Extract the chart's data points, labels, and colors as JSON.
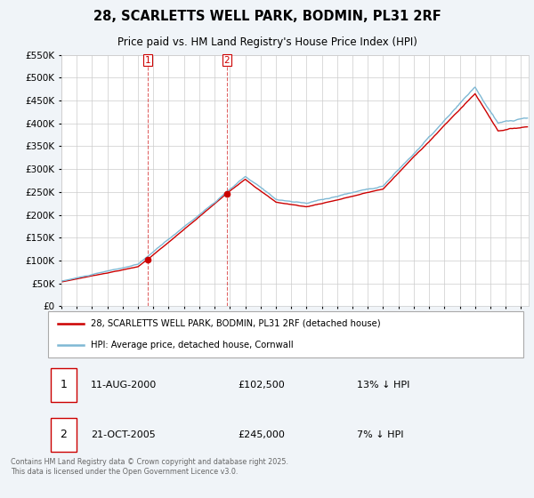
{
  "title": "28, SCARLETTS WELL PARK, BODMIN, PL31 2RF",
  "subtitle": "Price paid vs. HM Land Registry's House Price Index (HPI)",
  "ylim": [
    0,
    550000
  ],
  "xlim_start": 1995.0,
  "xlim_end": 2025.5,
  "legend_line1": "28, SCARLETTS WELL PARK, BODMIN, PL31 2RF (detached house)",
  "legend_line2": "HPI: Average price, detached house, Cornwall",
  "annotation1_date": "11-AUG-2000",
  "annotation1_price": "£102,500",
  "annotation1_hpi": "13% ↓ HPI",
  "annotation2_date": "21-OCT-2005",
  "annotation2_price": "£245,000",
  "annotation2_hpi": "7% ↓ HPI",
  "footnote": "Contains HM Land Registry data © Crown copyright and database right 2025.\nThis data is licensed under the Open Government Licence v3.0.",
  "hpi_color": "#7eb8d4",
  "price_color": "#cc0000",
  "vline_color": "#cc0000",
  "background_color": "#f0f4f8",
  "plot_bg_color": "#ffffff",
  "grid_color": "#cccccc",
  "sale1_x": 2000.62,
  "sale1_y": 102500,
  "sale2_x": 2005.8,
  "sale2_y": 245000,
  "vline1_x": 2000.62,
  "vline2_x": 2005.8
}
